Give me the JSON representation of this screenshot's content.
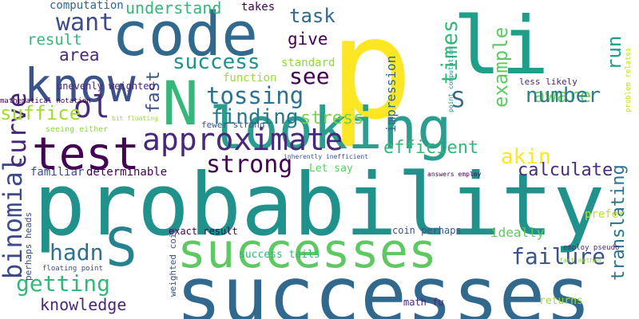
{
  "words": [
    {
      "text": "p",
      "color": "#fde725"
    },
    {
      "text": "probability",
      "color": "#21918c"
    },
    {
      "text": "successes",
      "color": "#31688e"
    },
    {
      "text": "successes",
      "color": "#5ec962"
    },
    {
      "text": "looking",
      "color": "#2a9d8f"
    },
    {
      "text": "code",
      "color": "#31688e"
    },
    {
      "text": "li",
      "color": "#1f9e89"
    },
    {
      "text": "test",
      "color": "#440154"
    },
    {
      "text": "know",
      "color": "#3b528b"
    },
    {
      "text": "N",
      "color": "#35b779"
    },
    {
      "text": "S",
      "color": "#26828e"
    },
    {
      "text": "approximate",
      "color": "#482878"
    },
    {
      "text": "binomial",
      "color": "#3e4a89"
    },
    {
      "text": "curve",
      "color": "#482677"
    },
    {
      "text": "ol",
      "color": "#472c7a"
    },
    {
      "text": "success",
      "color": "#21918c"
    },
    {
      "text": "tossing",
      "color": "#2c728e"
    },
    {
      "text": "getting",
      "color": "#35b779"
    },
    {
      "text": "failure",
      "color": "#3b528b"
    },
    {
      "text": "example",
      "color": "#5ec962"
    },
    {
      "text": "times",
      "color": "#35b779"
    },
    {
      "text": "want",
      "color": "#3e4a89"
    },
    {
      "text": "task",
      "color": "#31688e"
    },
    {
      "text": "aware",
      "color": "#7ad151"
    },
    {
      "text": "number",
      "color": "#287d8e"
    },
    {
      "text": "strong",
      "color": "#440154"
    },
    {
      "text": "finding",
      "color": "#2a788e"
    },
    {
      "text": "efficient",
      "color": "#35b779"
    },
    {
      "text": "calculate",
      "color": "#472d7b"
    },
    {
      "text": "translating",
      "color": "#2c728e"
    },
    {
      "text": "akin",
      "color": "#fde725"
    },
    {
      "text": "hadn",
      "color": "#2c728e"
    },
    {
      "text": "knowledge",
      "color": "#482878"
    },
    {
      "text": "understand",
      "color": "#35b779"
    },
    {
      "text": "see",
      "color": "#440154"
    },
    {
      "text": "run",
      "color": "#1f9e89"
    },
    {
      "text": "S",
      "color": "#31688e"
    },
    {
      "text": "stress",
      "color": "#7ad151"
    },
    {
      "text": "suffice",
      "color": "#a0da39"
    },
    {
      "text": "fast",
      "color": "#3b528b"
    },
    {
      "text": "area",
      "color": "#482878"
    },
    {
      "text": "result",
      "color": "#35b779"
    },
    {
      "text": "give",
      "color": "#440154"
    },
    {
      "text": "impression",
      "color": "#31688e"
    },
    {
      "text": "function",
      "color": "#a0da39"
    },
    {
      "text": "standard",
      "color": "#8fd744"
    },
    {
      "text": "computation",
      "color": "#31688e"
    },
    {
      "text": "takes",
      "color": "#440154"
    },
    {
      "text": "unevenly weighted",
      "color": "#482878"
    },
    {
      "text": "familiar",
      "color": "#3e4a89"
    },
    {
      "text": "determinable",
      "color": "#440154"
    },
    {
      "text": "ideally",
      "color": "#5ec962"
    },
    {
      "text": "prefer",
      "color": "#c2df23"
    },
    {
      "text": "exact result",
      "color": "#440154"
    },
    {
      "text": "success tails",
      "color": "#35b779"
    },
    {
      "text": "coin perhaps",
      "color": "#3b528b"
    },
    {
      "text": "Let say",
      "color": "#5ec962"
    },
    {
      "text": "perhaps heads",
      "color": "#3e4a89"
    },
    {
      "text": "weighted coin",
      "color": "#3b528b"
    },
    {
      "text": "math fu",
      "color": "#482878"
    },
    {
      "text": "returns",
      "color": "#a0da39"
    },
    {
      "text": "less likely",
      "color": "#482878"
    },
    {
      "text": "fewer strong",
      "color": "#3b528b"
    },
    {
      "text": "seeing either",
      "color": "#8fd744"
    },
    {
      "text": "mathematical notation",
      "color": "#440154"
    },
    {
      "text": "bit floating",
      "color": "#a0da39"
    },
    {
      "text": "floating point",
      "color": "#3e4a89"
    },
    {
      "text": "inherently inefficient",
      "color": "#3b528b"
    },
    {
      "text": "answers employ",
      "color": "#440154"
    },
    {
      "text": "employ pseudo",
      "color": "#482878"
    },
    {
      "text": "fast method",
      "color": "#8fd744"
    },
    {
      "text": "point computation",
      "color": "#21918c"
    },
    {
      "text": "problem relates",
      "color": "#c2df23"
    }
  ]
}
